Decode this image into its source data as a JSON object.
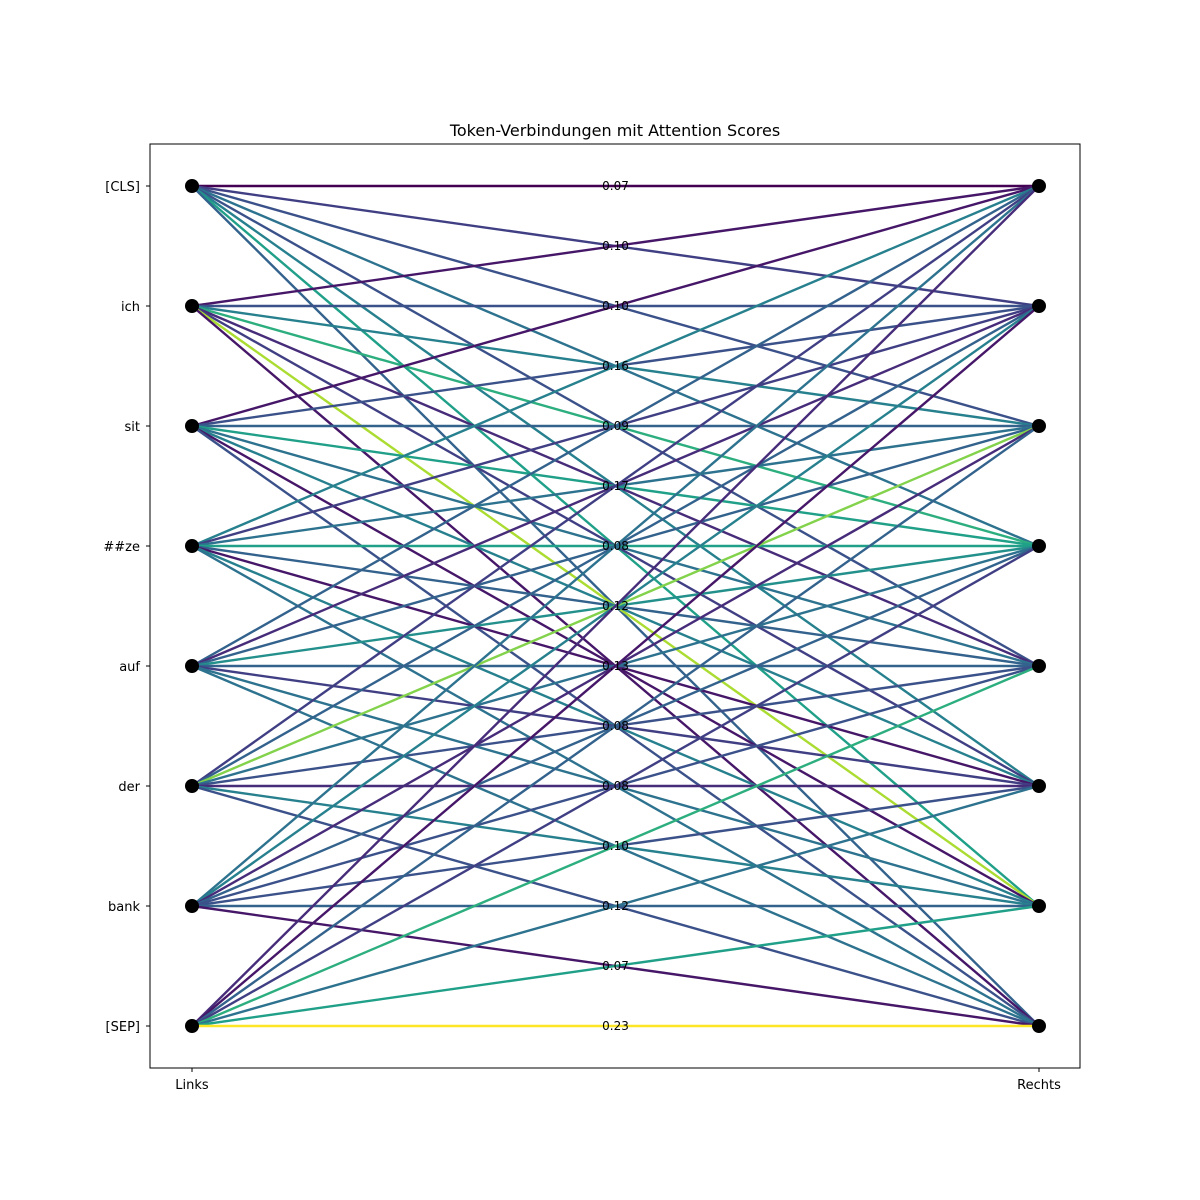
{
  "chart_data": {
    "type": "bipartite-attention",
    "title": "Token-Verbindungen mit Attention Scores",
    "xlabel": "",
    "ylabel": "",
    "xticks": [
      "Links",
      "Rechts"
    ],
    "tokens": [
      "[CLS]",
      "ich",
      "sit",
      "##ze",
      "auf",
      "der",
      "bank",
      "[SEP]"
    ],
    "colormap": "viridis",
    "color_range": [
      0.07,
      0.23
    ],
    "grid": false,
    "legend": "none",
    "visible_labels": [
      {
        "center_index": 0,
        "text": "0.07"
      },
      {
        "center_index": 1,
        "text": "0.10"
      },
      {
        "center_index": 2,
        "text": "0.10"
      },
      {
        "center_index": 3,
        "text": "0.16"
      },
      {
        "center_index": 4,
        "text": "0.09"
      },
      {
        "center_index": 5,
        "text": "0.17"
      },
      {
        "center_index": 6,
        "text": "0.08"
      },
      {
        "center_index": 7,
        "text": "0.12"
      },
      {
        "center_index": 8,
        "text": "0.13"
      },
      {
        "center_index": 9,
        "text": "0.08"
      },
      {
        "center_index": 10,
        "text": "0.08"
      },
      {
        "center_index": 11,
        "text": "0.10"
      },
      {
        "center_index": 12,
        "text": "0.12"
      },
      {
        "center_index": 13,
        "text": "0.07"
      },
      {
        "center_index": 14,
        "text": "0.23"
      }
    ],
    "weights": [
      [
        0.07,
        0.1,
        0.11,
        0.13,
        0.11,
        0.14,
        0.16,
        0.12
      ],
      [
        0.08,
        0.11,
        0.14,
        0.17,
        0.09,
        0.1,
        0.21,
        0.08
      ],
      [
        0.08,
        0.11,
        0.12,
        0.16,
        0.13,
        0.14,
        0.08,
        0.11
      ],
      [
        0.14,
        0.1,
        0.13,
        0.16,
        0.12,
        0.08,
        0.14,
        0.13
      ],
      [
        0.12,
        0.09,
        0.12,
        0.15,
        0.12,
        0.1,
        0.13,
        0.13
      ],
      [
        0.1,
        0.12,
        0.2,
        0.13,
        0.11,
        0.09,
        0.14,
        0.11
      ],
      [
        0.13,
        0.14,
        0.09,
        0.12,
        0.11,
        0.11,
        0.12,
        0.08
      ],
      [
        0.09,
        0.08,
        0.12,
        0.1,
        0.17,
        0.13,
        0.16,
        0.23
      ]
    ]
  }
}
